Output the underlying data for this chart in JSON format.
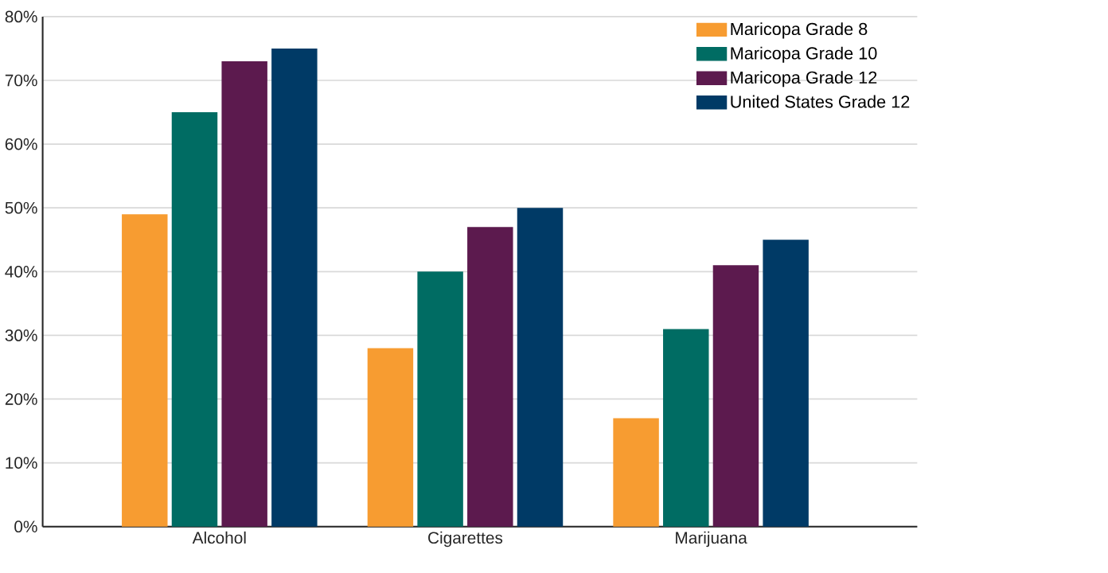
{
  "chart_data": {
    "type": "bar",
    "categories": [
      "Alcohol",
      "Cigarettes",
      "Marijuana"
    ],
    "series": [
      {
        "name": "Maricopa Grade 8",
        "color": "#f79c31",
        "values": [
          49,
          28,
          17
        ]
      },
      {
        "name": "Maricopa Grade 10",
        "color": "#006c63",
        "values": [
          65,
          40,
          31
        ]
      },
      {
        "name": "Maricopa Grade 12",
        "color": "#5c1a4e",
        "values": [
          73,
          47,
          41
        ]
      },
      {
        "name": "United States Grade 12",
        "color": "#003a66",
        "values": [
          75,
          50,
          45
        ]
      }
    ],
    "ylim": [
      0,
      80
    ],
    "yticks": [
      {
        "value": 0,
        "label": "0%"
      },
      {
        "value": 10,
        "label": "10%"
      },
      {
        "value": 20,
        "label": "20%"
      },
      {
        "value": 30,
        "label": "30%"
      },
      {
        "value": 40,
        "label": "40%"
      },
      {
        "value": 50,
        "label": "50%"
      },
      {
        "value": 60,
        "label": "60%"
      },
      {
        "value": 70,
        "label": "70%"
      },
      {
        "value": 80,
        "label": "80%"
      }
    ],
    "grid": "y",
    "legend": "top right"
  }
}
